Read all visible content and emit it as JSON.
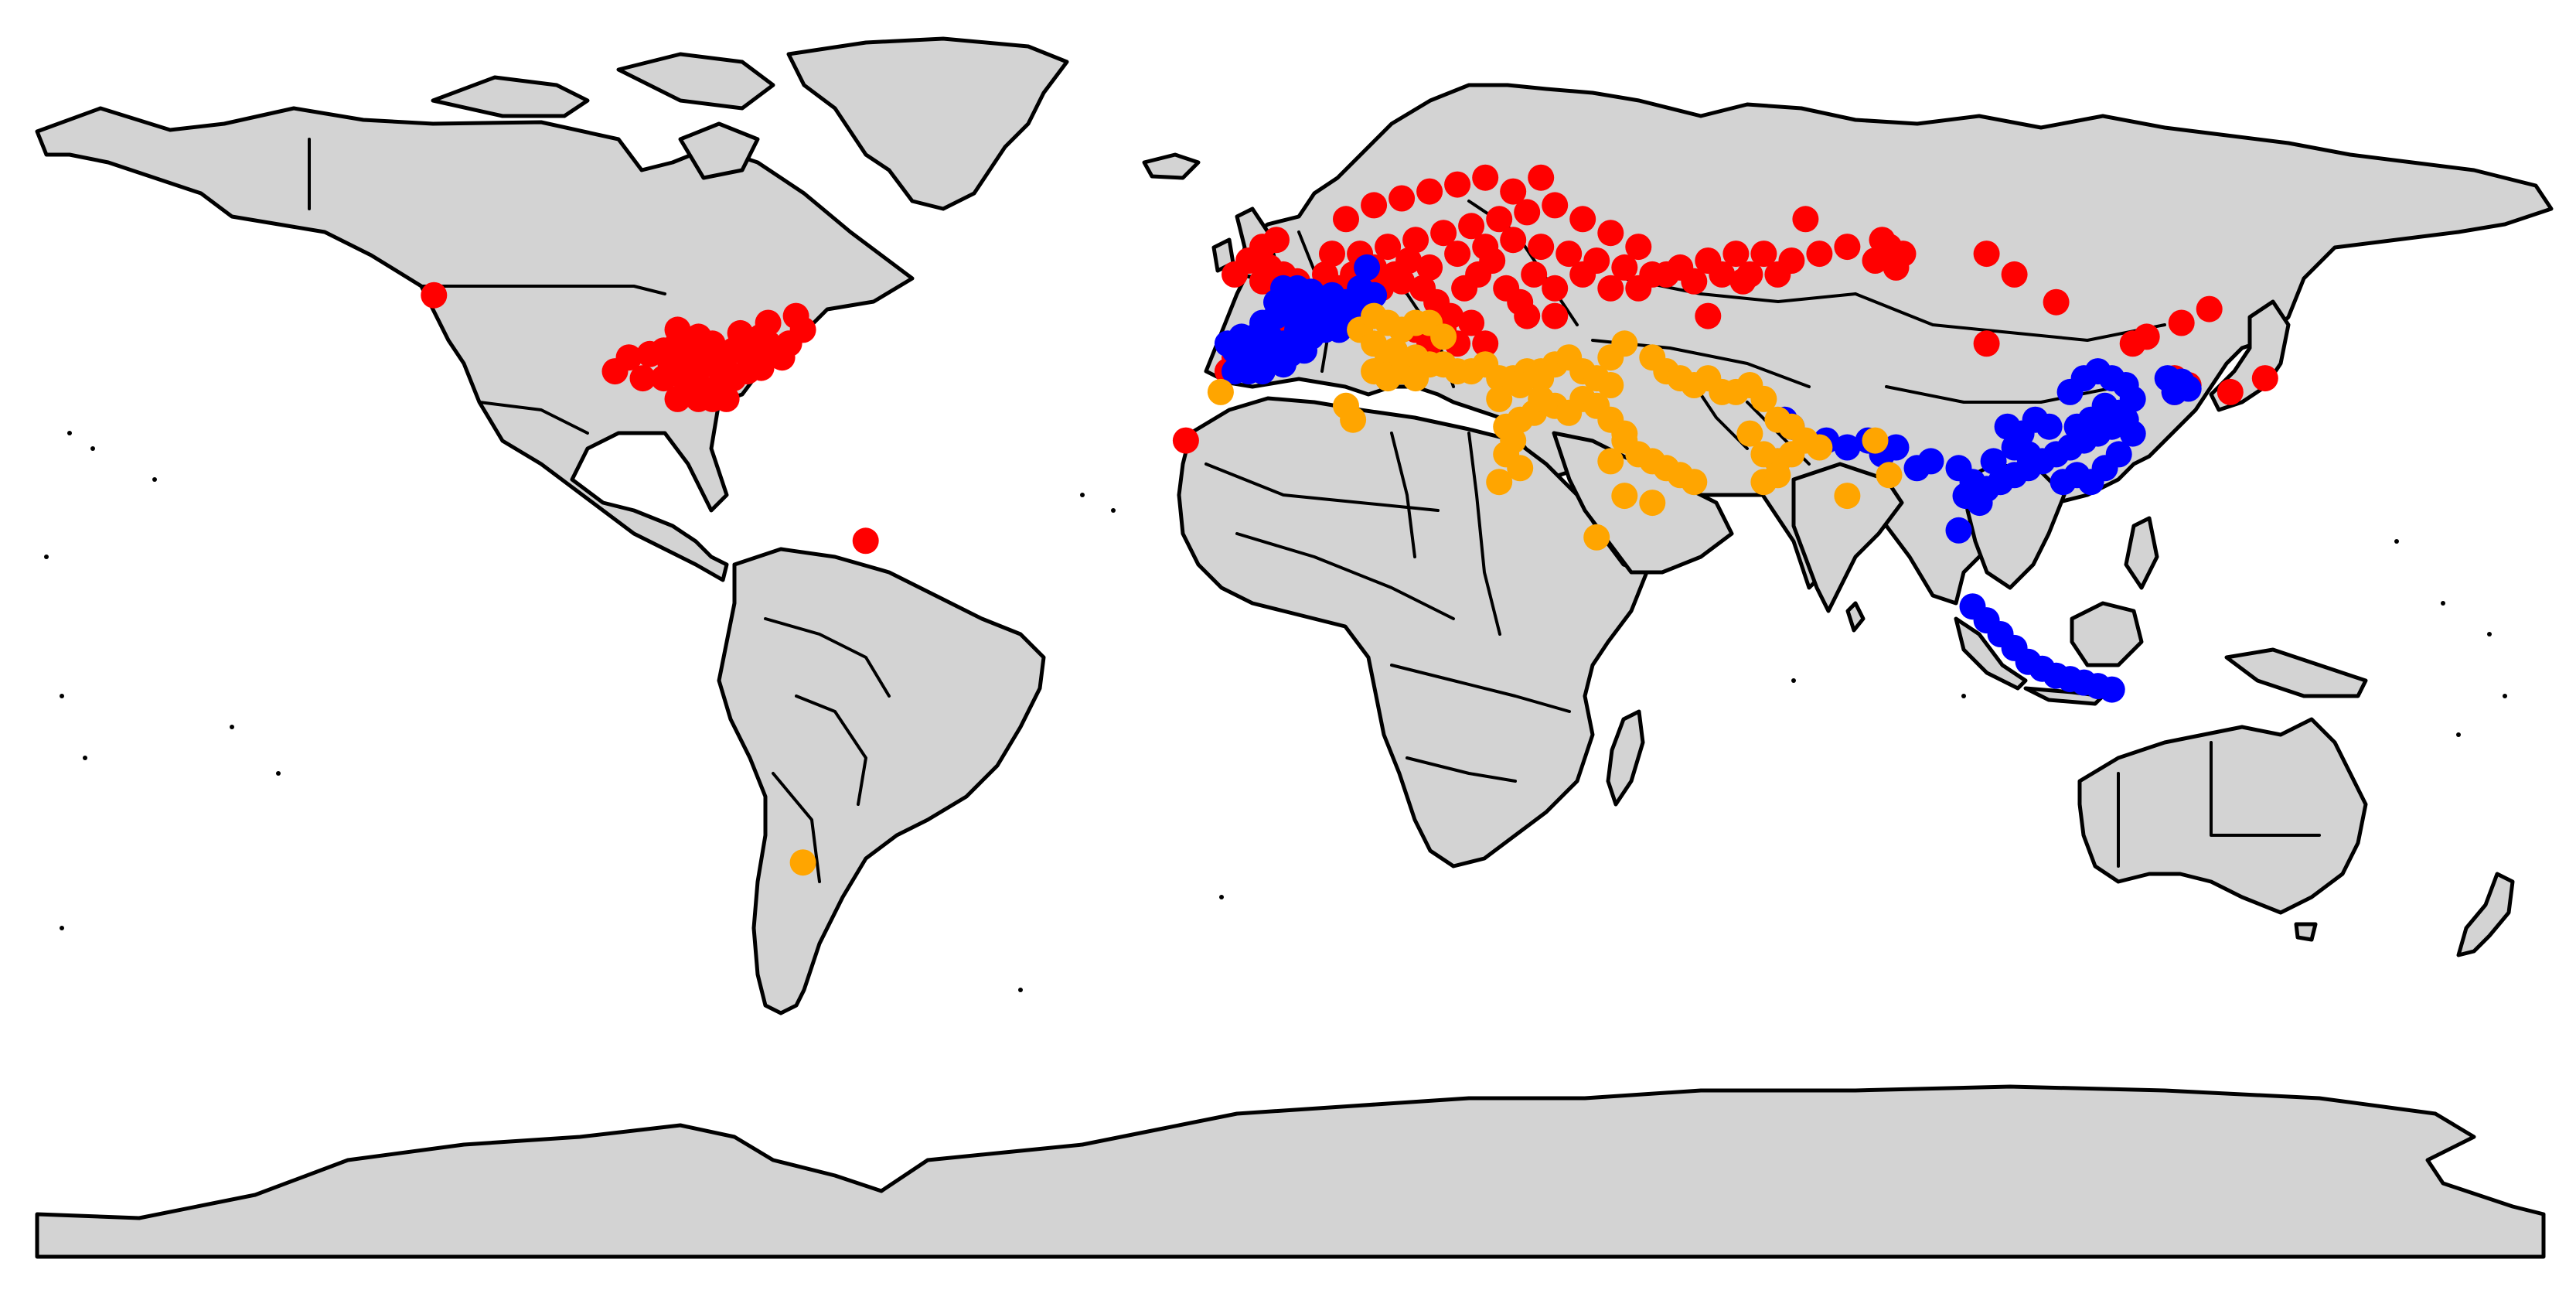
{
  "colors": {
    "land": "#d3d3d3",
    "border": "#000000",
    "background": "#ffffff"
  },
  "series": [
    {
      "color": "#ff0000",
      "points": [
        [
          -123,
          49
        ],
        [
          -61,
          13.5
        ],
        [
          -95,
          40
        ],
        [
          -92,
          40.5
        ],
        [
          -90,
          41
        ],
        [
          -88,
          42
        ],
        [
          -86,
          40
        ],
        [
          -84,
          39
        ],
        [
          -82,
          40
        ],
        [
          -80,
          41
        ],
        [
          -78,
          42
        ],
        [
          -76,
          43
        ],
        [
          -74,
          41
        ],
        [
          -72,
          42
        ],
        [
          -70,
          44
        ],
        [
          -93,
          37
        ],
        [
          -90,
          37
        ],
        [
          -87,
          37
        ],
        [
          -85,
          36
        ],
        [
          -82,
          36
        ],
        [
          -80,
          37
        ],
        [
          -78,
          38
        ],
        [
          -76,
          38.5
        ],
        [
          -88,
          34
        ],
        [
          -85,
          34
        ],
        [
          -83,
          34
        ],
        [
          -81,
          34
        ],
        [
          -88,
          44
        ],
        [
          -85,
          43
        ],
        [
          -83,
          42
        ],
        [
          -79,
          43.5
        ],
        [
          -75,
          45
        ],
        [
          -71,
          46
        ],
        [
          -97,
          38
        ],
        [
          -89,
          39
        ],
        [
          -86,
          38
        ],
        [
          -84,
          41
        ],
        [
          -81,
          38
        ],
        [
          -77,
          40
        ],
        [
          -73,
          40
        ],
        [
          -75,
          42
        ],
        [
          -15,
          28
        ],
        [
          -8,
          52
        ],
        [
          -6,
          54
        ],
        [
          -4,
          56
        ],
        [
          -3,
          53
        ],
        [
          -1,
          52
        ],
        [
          1,
          51
        ],
        [
          -2,
          57
        ],
        [
          -4,
          51
        ],
        [
          -8,
          40
        ],
        [
          -6,
          42
        ],
        [
          -3,
          43
        ],
        [
          -1,
          44
        ],
        [
          -9,
          38
        ],
        [
          5,
          52
        ],
        [
          7,
          50
        ],
        [
          9,
          48
        ],
        [
          11,
          46
        ],
        [
          13,
          50
        ],
        [
          15,
          52
        ],
        [
          17,
          54
        ],
        [
          19,
          50
        ],
        [
          21,
          48
        ],
        [
          23,
          46
        ],
        [
          25,
          50
        ],
        [
          27,
          52
        ],
        [
          29,
          54
        ],
        [
          31,
          50
        ],
        [
          33,
          48
        ],
        [
          35,
          52
        ],
        [
          6,
          55
        ],
        [
          10,
          55
        ],
        [
          14,
          56
        ],
        [
          18,
          57
        ],
        [
          22,
          58
        ],
        [
          26,
          59
        ],
        [
          30,
          60
        ],
        [
          34,
          61
        ],
        [
          38,
          62
        ],
        [
          42,
          60
        ],
        [
          46,
          58
        ],
        [
          50,
          56
        ],
        [
          8,
          60
        ],
        [
          12,
          62
        ],
        [
          16,
          63
        ],
        [
          20,
          64
        ],
        [
          24,
          65
        ],
        [
          28,
          66
        ],
        [
          32,
          64
        ],
        [
          36,
          66
        ],
        [
          9,
          52
        ],
        [
          12,
          53
        ],
        [
          16,
          51
        ],
        [
          20,
          53
        ],
        [
          24,
          55
        ],
        [
          28,
          56
        ],
        [
          32,
          57
        ],
        [
          36,
          56
        ],
        [
          40,
          55
        ],
        [
          44,
          54
        ],
        [
          48,
          53
        ],
        [
          52,
          52
        ],
        [
          56,
          53
        ],
        [
          60,
          54
        ],
        [
          64,
          55
        ],
        [
          68,
          55
        ],
        [
          72,
          54
        ],
        [
          76,
          55
        ],
        [
          80,
          56
        ],
        [
          84,
          54
        ],
        [
          38,
          50
        ],
        [
          42,
          52
        ],
        [
          46,
          50
        ],
        [
          50,
          50
        ],
        [
          54,
          52
        ],
        [
          58,
          51
        ],
        [
          62,
          52
        ],
        [
          66,
          52
        ],
        [
          18,
          44
        ],
        [
          22,
          44
        ],
        [
          26,
          45
        ],
        [
          28,
          42
        ],
        [
          24,
          42
        ],
        [
          20,
          42
        ],
        [
          34,
          46
        ],
        [
          38,
          46
        ],
        [
          86,
          56
        ],
        [
          88,
          55
        ],
        [
          87,
          53
        ],
        [
          85,
          57
        ],
        [
          60,
          46
        ],
        [
          65,
          51
        ],
        [
          70,
          52
        ],
        [
          74,
          60
        ],
        [
          100,
          55
        ],
        [
          104,
          52
        ],
        [
          110,
          48
        ],
        [
          100,
          42
        ],
        [
          121,
          42
        ],
        [
          123,
          43
        ],
        [
          128,
          45
        ],
        [
          132,
          47
        ],
        [
          127,
          37
        ],
        [
          129,
          36
        ],
        [
          127,
          35
        ],
        [
          135,
          35
        ],
        [
          140,
          37
        ]
      ]
    },
    {
      "color": "#0000ff",
      "points": [
        [
          -9,
          42
        ],
        [
          -7,
          43
        ],
        [
          -5,
          43
        ],
        [
          -3,
          43
        ],
        [
          -1,
          42
        ],
        [
          1,
          42
        ],
        [
          3,
          43
        ],
        [
          -8,
          41
        ],
        [
          -6,
          41
        ],
        [
          -4,
          41
        ],
        [
          -2,
          41
        ],
        [
          0,
          40.5
        ],
        [
          2,
          41
        ],
        [
          -7,
          39
        ],
        [
          -5,
          39.5
        ],
        [
          -3,
          40
        ],
        [
          -1,
          39
        ],
        [
          -8,
          38
        ],
        [
          -6,
          38
        ],
        [
          -4,
          38
        ],
        [
          -4,
          45
        ],
        [
          -2,
          46
        ],
        [
          0,
          46.5
        ],
        [
          2,
          47
        ],
        [
          4,
          47
        ],
        [
          6,
          46
        ],
        [
          8,
          46
        ],
        [
          -2,
          48
        ],
        [
          0,
          48.5
        ],
        [
          2,
          49
        ],
        [
          4,
          48
        ],
        [
          -1,
          50
        ],
        [
          1,
          50
        ],
        [
          3,
          49.5
        ],
        [
          8,
          48
        ],
        [
          10,
          47
        ],
        [
          5,
          44
        ],
        [
          7,
          44
        ],
        [
          9,
          45
        ],
        [
          2,
          45
        ],
        [
          4,
          45
        ],
        [
          6,
          49
        ],
        [
          10,
          50
        ],
        [
          1,
          44
        ],
        [
          3,
          46
        ],
        [
          12,
          49
        ],
        [
          11,
          53
        ],
        [
          71,
          31
        ],
        [
          72,
          30
        ],
        [
          70,
          25
        ],
        [
          77,
          28
        ],
        [
          80,
          27
        ],
        [
          83,
          28
        ],
        [
          85,
          26
        ],
        [
          87,
          27
        ],
        [
          90,
          24
        ],
        [
          92,
          25
        ],
        [
          96,
          24
        ],
        [
          98,
          22
        ],
        [
          100,
          21
        ],
        [
          102,
          22
        ],
        [
          104,
          23
        ],
        [
          106,
          24
        ],
        [
          108,
          25
        ],
        [
          110,
          26
        ],
        [
          112,
          27
        ],
        [
          114,
          28
        ],
        [
          116,
          29
        ],
        [
          118,
          30
        ],
        [
          120,
          31
        ],
        [
          121,
          29
        ],
        [
          119,
          26
        ],
        [
          117,
          24
        ],
        [
          115,
          22
        ],
        [
          113,
          23
        ],
        [
          111,
          22
        ],
        [
          103,
          30
        ],
        [
          105,
          29
        ],
        [
          107,
          31
        ],
        [
          109,
          30
        ],
        [
          113,
          30
        ],
        [
          115,
          31
        ],
        [
          117,
          33
        ],
        [
          119,
          32
        ],
        [
          121,
          34
        ],
        [
          120,
          36
        ],
        [
          118,
          37
        ],
        [
          116,
          38
        ],
        [
          114,
          37
        ],
        [
          112,
          35
        ],
        [
          104,
          27
        ],
        [
          106,
          26
        ],
        [
          101,
          25
        ],
        [
          97,
          20
        ],
        [
          99,
          19
        ],
        [
          96,
          15
        ],
        [
          126,
          37
        ],
        [
          128,
          36.5
        ],
        [
          129,
          35.5
        ],
        [
          127,
          35
        ],
        [
          98,
          4
        ],
        [
          100,
          2
        ],
        [
          102,
          0
        ],
        [
          104,
          -2
        ],
        [
          106,
          -4
        ],
        [
          108,
          -5
        ],
        [
          110,
          -6
        ],
        [
          112,
          -6.5
        ],
        [
          114,
          -7
        ],
        [
          116,
          -7.5
        ],
        [
          118,
          -8
        ]
      ]
    },
    {
      "color": "#ffa500",
      "points": [
        [
          -70,
          -33
        ],
        [
          -10,
          35
        ],
        [
          8,
          33
        ],
        [
          9,
          31
        ],
        [
          10,
          44
        ],
        [
          12,
          42
        ],
        [
          14,
          40
        ],
        [
          16,
          38
        ],
        [
          18,
          40
        ],
        [
          12,
          38
        ],
        [
          14,
          37
        ],
        [
          15,
          41
        ],
        [
          18,
          37
        ],
        [
          20,
          39
        ],
        [
          22,
          39
        ],
        [
          24,
          38
        ],
        [
          26,
          38
        ],
        [
          28,
          39
        ],
        [
          30,
          37
        ],
        [
          32,
          37
        ],
        [
          34,
          38
        ],
        [
          36,
          37
        ],
        [
          33,
          36
        ],
        [
          12,
          46
        ],
        [
          14,
          45
        ],
        [
          16,
          44
        ],
        [
          18,
          45
        ],
        [
          20,
          45
        ],
        [
          22,
          43
        ],
        [
          30,
          34
        ],
        [
          31,
          30
        ],
        [
          32,
          28
        ],
        [
          33,
          31
        ],
        [
          35,
          32
        ],
        [
          31,
          26
        ],
        [
          33,
          24
        ],
        [
          30,
          22
        ],
        [
          36,
          38
        ],
        [
          38,
          39
        ],
        [
          40,
          40
        ],
        [
          42,
          38
        ],
        [
          44,
          37
        ],
        [
          46,
          36
        ],
        [
          36,
          34
        ],
        [
          38,
          33
        ],
        [
          40,
          32
        ],
        [
          42,
          34
        ],
        [
          44,
          33
        ],
        [
          46,
          31
        ],
        [
          48,
          29
        ],
        [
          46,
          40
        ],
        [
          48,
          42
        ],
        [
          52,
          40
        ],
        [
          54,
          38
        ],
        [
          56,
          37
        ],
        [
          58,
          36
        ],
        [
          60,
          37
        ],
        [
          62,
          35
        ],
        [
          64,
          35
        ],
        [
          66,
          36
        ],
        [
          48,
          28
        ],
        [
          50,
          26
        ],
        [
          52,
          25
        ],
        [
          54,
          24
        ],
        [
          56,
          23
        ],
        [
          58,
          22
        ],
        [
          46,
          25
        ],
        [
          48,
          20
        ],
        [
          52,
          19
        ],
        [
          44,
          14
        ],
        [
          68,
          34
        ],
        [
          70,
          31
        ],
        [
          72,
          30
        ],
        [
          66,
          29
        ],
        [
          68,
          26
        ],
        [
          70,
          25
        ],
        [
          72,
          26
        ],
        [
          74,
          28
        ],
        [
          76,
          27
        ],
        [
          80,
          20
        ],
        [
          84,
          28
        ],
        [
          86,
          23
        ],
        [
          68,
          22
        ],
        [
          70,
          23
        ]
      ]
    }
  ]
}
